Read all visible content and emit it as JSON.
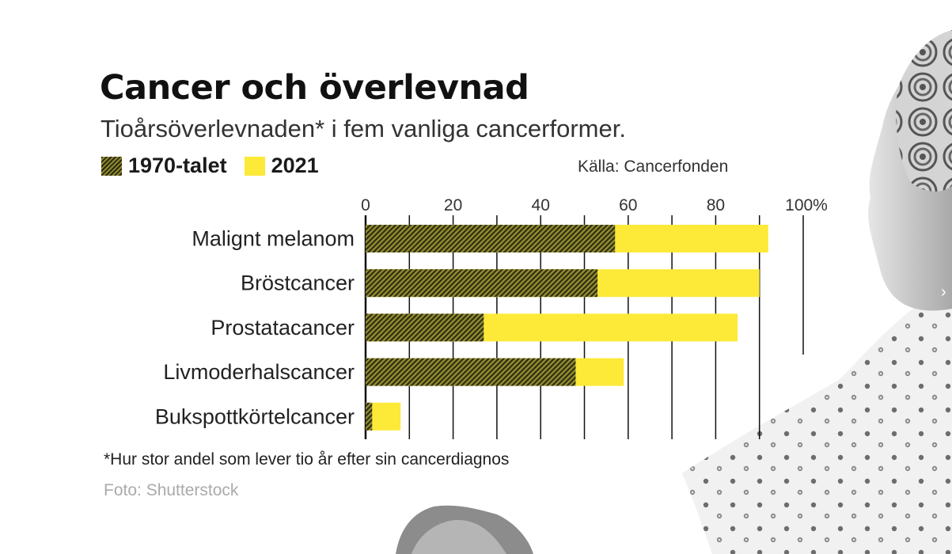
{
  "header": {
    "title": "Cancer och överlevnad",
    "subtitle": "Tioårsöverlevnaden* i fem vanliga cancerformer."
  },
  "legend": [
    {
      "label": "1970-talet",
      "color": "#2b2a12",
      "pattern": "hatched"
    },
    {
      "label": "2021",
      "color": "#fde938",
      "pattern": "solid"
    }
  ],
  "source": "Källa: Cancerfonden",
  "footnote": "*Hur stor andel som lever tio år efter sin cancerdiagnos",
  "photo_credit": "Foto: Shutterstock",
  "nav": {
    "next_icon": "chevron-right-icon",
    "next_glyph": "›"
  },
  "chart_data": {
    "type": "bar",
    "orientation": "horizontal",
    "categories": [
      "Malignt melanom",
      "Bröstcancer",
      "Prostatacancer",
      "Livmoderhalscancer",
      "Bukspottkörtelcancer"
    ],
    "series": [
      {
        "name": "1970-talet",
        "values": [
          57,
          53,
          27,
          48,
          1.5
        ],
        "color": "#2b2a12"
      },
      {
        "name": "2021",
        "values": [
          92,
          90,
          85,
          59,
          8
        ],
        "color": "#fde938"
      }
    ],
    "xticks": [
      "0",
      "20",
      "40",
      "60",
      "80",
      "100%"
    ],
    "xtick_values": [
      0,
      20,
      40,
      60,
      80,
      100
    ],
    "xlim": [
      0,
      100
    ],
    "grid": true,
    "grid_step": 10
  }
}
